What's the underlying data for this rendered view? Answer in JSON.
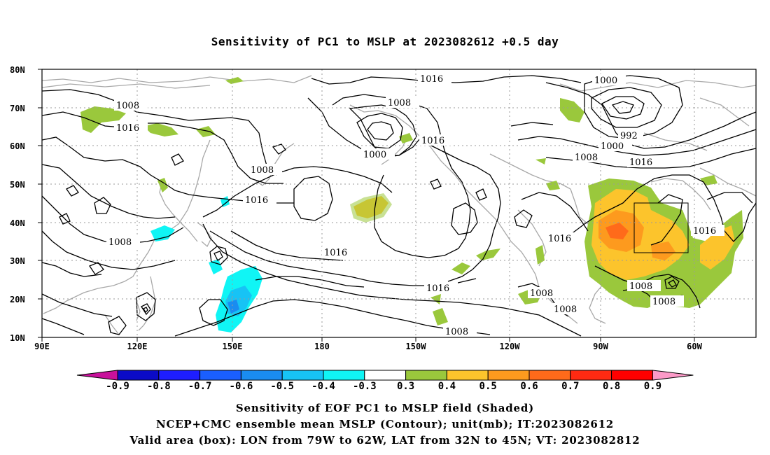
{
  "title": "Sensitivity of PC1 to MSLP at 2023082612 +0.5 day",
  "map": {
    "lat_ticks": [
      "80N",
      "70N",
      "60N",
      "50N",
      "40N",
      "30N",
      "20N",
      "10N"
    ],
    "lon_ticks": [
      "90E",
      "120E",
      "150E",
      "180",
      "150W",
      "120W",
      "90W",
      "60W"
    ],
    "contour_labels": [
      "1016",
      "1000",
      "1008",
      "1016",
      "1016",
      "1000",
      "1008",
      "1000",
      "992",
      "1008",
      "1016",
      "1008",
      "1016",
      "1008",
      "1016",
      "1016",
      "1016",
      "1008",
      "1008",
      "1008",
      "1008",
      "1008",
      "1016",
      "1008"
    ],
    "valid_area_box": {
      "lon_from": "79W",
      "lon_to": "62W",
      "lat_from": "32N",
      "lat_to": "45N"
    }
  },
  "colorbar": {
    "labels": [
      "-0.9",
      "-0.8",
      "-0.7",
      "-0.6",
      "-0.5",
      "-0.4",
      "-0.3",
      "0.3",
      "0.4",
      "0.5",
      "0.6",
      "0.7",
      "0.8",
      "0.9"
    ],
    "colors": [
      "#c8119b",
      "#0b0bc6",
      "#1e1eff",
      "#1a5fff",
      "#1a8cf0",
      "#17c3f5",
      "#10f5f5",
      "#ffffff",
      "#9ac83c",
      "#fcc42c",
      "#fd9a1e",
      "#ff6a1a",
      "#ff2a12",
      "#ff0000",
      "#fc9ac8"
    ]
  },
  "captions": [
    "Sensitivity of EOF PC1 to MSLP field (Shaded)",
    "NCEP+CMC ensemble mean MSLP (Contour); unit(mb); IT:2023082612",
    "Valid area (box): LON from 79W to 62W, LAT from 32N to 45N; VT: 2023082812"
  ]
}
